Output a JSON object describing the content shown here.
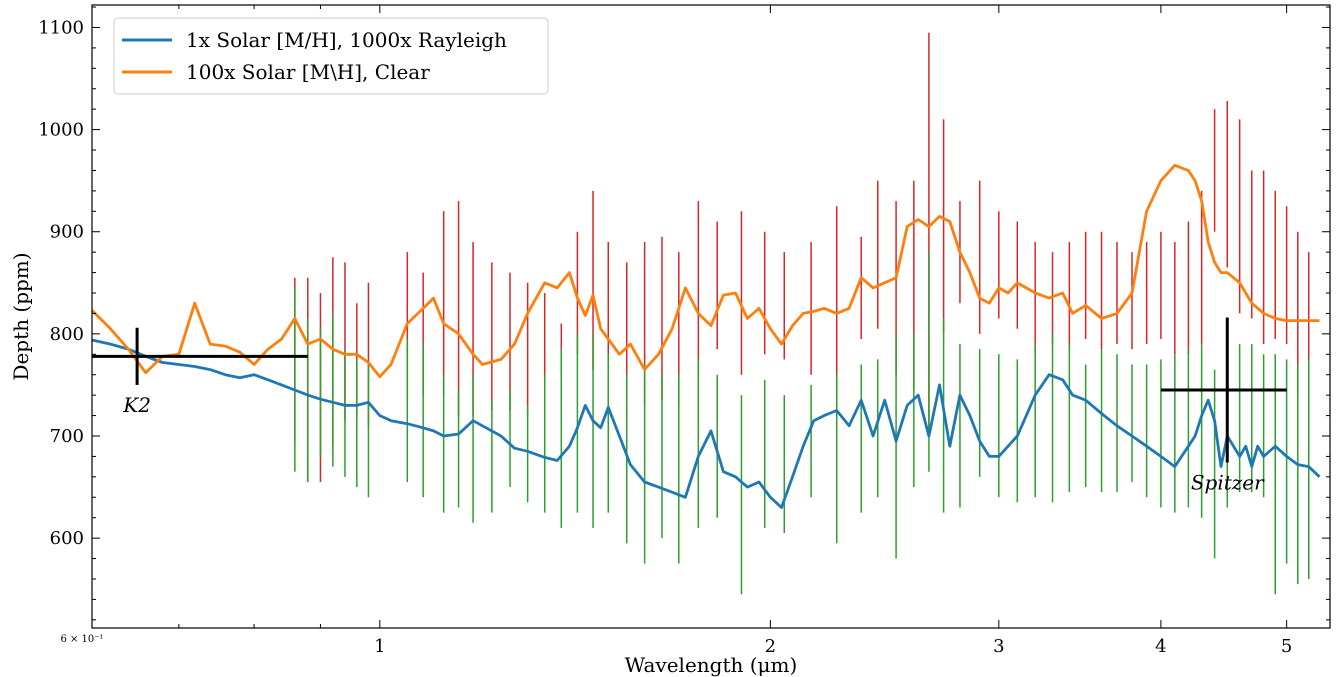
{
  "chart_data": {
    "type": "line",
    "xlabel": "Wavelength (μm)",
    "ylabel": "Depth (ppm)",
    "xscale": "log",
    "xlim": [
      0.6,
      5.4
    ],
    "ylim": [
      512,
      1122
    ],
    "grid": false,
    "legend_position": "top-left",
    "x_ticks": [
      {
        "value": 0.6,
        "label": "6 × 10⁻¹",
        "small": true
      },
      {
        "value": 1,
        "label": "1"
      },
      {
        "value": 2,
        "label": "2"
      },
      {
        "value": 3,
        "label": "3"
      },
      {
        "value": 4,
        "label": "4"
      },
      {
        "value": 5,
        "label": "5"
      }
    ],
    "y_ticks": [
      600,
      700,
      800,
      900,
      1000,
      1100
    ],
    "series": [
      {
        "name": "1x Solar [M/H], 1000x Rayleigh",
        "color": "#1f77b4",
        "x": [
          0.6,
          0.62,
          0.64,
          0.66,
          0.68,
          0.7,
          0.72,
          0.74,
          0.76,
          0.78,
          0.8,
          0.82,
          0.84,
          0.86,
          0.88,
          0.9,
          0.92,
          0.94,
          0.96,
          0.98,
          1.0,
          1.02,
          1.05,
          1.08,
          1.1,
          1.12,
          1.15,
          1.18,
          1.2,
          1.24,
          1.27,
          1.3,
          1.34,
          1.37,
          1.4,
          1.42,
          1.44,
          1.46,
          1.48,
          1.5,
          1.53,
          1.56,
          1.6,
          1.64,
          1.68,
          1.72,
          1.76,
          1.8,
          1.84,
          1.88,
          1.92,
          1.96,
          2.0,
          2.04,
          2.08,
          2.12,
          2.16,
          2.2,
          2.25,
          2.3,
          2.35,
          2.4,
          2.45,
          2.5,
          2.55,
          2.6,
          2.65,
          2.7,
          2.75,
          2.8,
          2.85,
          2.9,
          2.95,
          3.0,
          3.05,
          3.1,
          3.15,
          3.2,
          3.28,
          3.36,
          3.42,
          3.5,
          3.6,
          3.7,
          3.8,
          3.9,
          4.0,
          4.1,
          4.2,
          4.25,
          4.3,
          4.35,
          4.4,
          4.45,
          4.5,
          4.55,
          4.6,
          4.65,
          4.7,
          4.75,
          4.8,
          4.9,
          5.0,
          5.1,
          5.2,
          5.3
        ],
        "values": [
          794,
          790,
          785,
          778,
          772,
          770,
          768,
          765,
          760,
          757,
          760,
          755,
          750,
          745,
          740,
          736,
          733,
          730,
          730,
          733,
          720,
          715,
          712,
          708,
          705,
          700,
          702,
          715,
          710,
          700,
          688,
          685,
          679,
          676,
          690,
          708,
          730,
          715,
          708,
          728,
          700,
          672,
          655,
          650,
          645,
          640,
          680,
          705,
          665,
          660,
          650,
          655,
          640,
          630,
          660,
          690,
          715,
          720,
          725,
          710,
          735,
          700,
          735,
          695,
          730,
          740,
          700,
          750,
          690,
          740,
          720,
          695,
          680,
          680,
          690,
          700,
          720,
          740,
          760,
          755,
          740,
          735,
          722,
          710,
          700,
          690,
          680,
          670,
          690,
          700,
          720,
          735,
          715,
          670,
          700,
          690,
          680,
          690,
          670,
          690,
          680,
          690,
          680,
          672,
          670,
          660
        ]
      },
      {
        "name": "100x Solar [M\\H], Clear",
        "color": "#ff7f0e",
        "x": [
          0.6,
          0.62,
          0.64,
          0.66,
          0.68,
          0.7,
          0.72,
          0.74,
          0.76,
          0.78,
          0.8,
          0.82,
          0.84,
          0.86,
          0.88,
          0.9,
          0.92,
          0.94,
          0.96,
          0.98,
          1.0,
          1.02,
          1.05,
          1.08,
          1.1,
          1.12,
          1.15,
          1.18,
          1.2,
          1.24,
          1.27,
          1.3,
          1.34,
          1.37,
          1.4,
          1.42,
          1.44,
          1.46,
          1.48,
          1.5,
          1.53,
          1.56,
          1.6,
          1.64,
          1.68,
          1.72,
          1.76,
          1.8,
          1.84,
          1.88,
          1.92,
          1.96,
          2.0,
          2.04,
          2.08,
          2.12,
          2.16,
          2.2,
          2.25,
          2.3,
          2.35,
          2.4,
          2.45,
          2.5,
          2.55,
          2.6,
          2.65,
          2.7,
          2.75,
          2.8,
          2.85,
          2.9,
          2.95,
          3.0,
          3.05,
          3.1,
          3.15,
          3.2,
          3.28,
          3.36,
          3.42,
          3.5,
          3.6,
          3.7,
          3.8,
          3.9,
          4.0,
          4.1,
          4.2,
          4.25,
          4.3,
          4.35,
          4.4,
          4.45,
          4.5,
          4.55,
          4.6,
          4.65,
          4.7,
          4.75,
          4.8,
          4.9,
          5.0,
          5.1,
          5.2,
          5.3
        ],
        "values": [
          823,
          805,
          785,
          762,
          778,
          780,
          830,
          790,
          788,
          782,
          770,
          785,
          795,
          815,
          790,
          795,
          785,
          780,
          780,
          772,
          758,
          770,
          810,
          825,
          835,
          810,
          800,
          780,
          770,
          775,
          790,
          820,
          850,
          845,
          860,
          835,
          818,
          838,
          805,
          795,
          780,
          790,
          765,
          780,
          805,
          845,
          820,
          808,
          838,
          840,
          815,
          825,
          805,
          790,
          808,
          820,
          822,
          825,
          820,
          825,
          855,
          845,
          850,
          855,
          905,
          912,
          905,
          915,
          910,
          880,
          860,
          835,
          830,
          845,
          840,
          850,
          845,
          840,
          835,
          840,
          820,
          828,
          815,
          820,
          840,
          920,
          950,
          965,
          960,
          950,
          930,
          890,
          870,
          860,
          860,
          855,
          850,
          840,
          830,
          825,
          820,
          815,
          813,
          813,
          813,
          813
        ]
      }
    ],
    "error_bars": [
      {
        "color": "#d62728",
        "x": [
          0.86,
          0.88,
          0.9,
          0.92,
          0.94,
          0.96,
          0.98,
          1.05,
          1.08,
          1.12,
          1.15,
          1.18,
          1.22,
          1.26,
          1.3,
          1.34,
          1.38,
          1.42,
          1.46,
          1.5,
          1.55,
          1.6,
          1.65,
          1.7,
          1.76,
          1.82,
          1.9,
          1.98,
          2.05,
          2.15,
          2.25,
          2.35,
          2.42,
          2.5,
          2.58,
          2.65,
          2.72,
          2.8,
          2.9,
          3.0,
          3.1,
          3.2,
          3.3,
          3.4,
          3.5,
          3.6,
          3.7,
          3.8,
          3.9,
          4.0,
          4.1,
          4.2,
          4.3,
          4.4,
          4.5,
          4.6,
          4.7,
          4.8,
          4.9,
          5.0,
          5.1,
          5.2
        ],
        "low": [
          695,
          655,
          655,
          690,
          715,
          720,
          710,
          735,
          740,
          740,
          720,
          720,
          725,
          725,
          720,
          750,
          760,
          780,
          765,
          735,
          735,
          730,
          735,
          730,
          760,
          785,
          760,
          780,
          775,
          760,
          720,
          795,
          805,
          760,
          745,
          700,
          800,
          830,
          800,
          815,
          805,
          780,
          790,
          785,
          795,
          785,
          790,
          785,
          790,
          795,
          780,
          780,
          790,
          900,
          865,
          820,
          815,
          790,
          795,
          790,
          740,
          680
        ],
        "high": [
          855,
          855,
          840,
          875,
          870,
          830,
          850,
          880,
          860,
          920,
          930,
          890,
          870,
          860,
          850,
          840,
          810,
          900,
          940,
          890,
          870,
          890,
          895,
          880,
          930,
          910,
          920,
          900,
          880,
          890,
          925,
          895,
          950,
          930,
          950,
          1095,
          1010,
          930,
          950,
          920,
          910,
          890,
          880,
          890,
          900,
          900,
          890,
          880,
          890,
          900,
          890,
          910,
          940,
          1020,
          1028,
          1010,
          960,
          960,
          940,
          925,
          900,
          880
        ]
      },
      {
        "color": "#2ca02c",
        "x": [
          0.86,
          0.88,
          0.9,
          0.92,
          0.94,
          0.96,
          0.98,
          1.05,
          1.08,
          1.12,
          1.15,
          1.18,
          1.22,
          1.26,
          1.3,
          1.34,
          1.38,
          1.42,
          1.46,
          1.5,
          1.55,
          1.6,
          1.65,
          1.7,
          1.76,
          1.82,
          1.9,
          1.98,
          2.05,
          2.15,
          2.25,
          2.35,
          2.42,
          2.5,
          2.58,
          2.65,
          2.72,
          2.8,
          2.9,
          3.0,
          3.1,
          3.2,
          3.3,
          3.4,
          3.5,
          3.6,
          3.7,
          3.8,
          3.9,
          4.0,
          4.1,
          4.2,
          4.3,
          4.4,
          4.5,
          4.6,
          4.7,
          4.8,
          4.9,
          5.0,
          5.1,
          5.2
        ],
        "low": [
          665,
          655,
          680,
          670,
          660,
          650,
          640,
          655,
          640,
          625,
          630,
          615,
          625,
          650,
          635,
          625,
          610,
          625,
          610,
          625,
          595,
          575,
          600,
          575,
          610,
          620,
          545,
          610,
          605,
          640,
          595,
          625,
          640,
          580,
          650,
          665,
          625,
          630,
          660,
          640,
          635,
          640,
          635,
          645,
          650,
          645,
          645,
          655,
          640,
          630,
          625,
          630,
          620,
          580,
          630,
          645,
          645,
          640,
          545,
          575,
          555,
          560
        ],
        "high": [
          845,
          815,
          805,
          820,
          785,
          775,
          770,
          795,
          790,
          760,
          745,
          760,
          735,
          745,
          730,
          760,
          785,
          800,
          800,
          780,
          760,
          770,
          760,
          760,
          775,
          760,
          740,
          755,
          740,
          750,
          760,
          770,
          775,
          800,
          800,
          880,
          815,
          790,
          785,
          780,
          775,
          790,
          800,
          790,
          770,
          785,
          780,
          770,
          770,
          775,
          780,
          785,
          790,
          765,
          790,
          790,
          790,
          780,
          780,
          775,
          770,
          775
        ]
      }
    ],
    "photometry": [
      {
        "label": "K2",
        "x": 0.65,
        "x_low": 0.6,
        "x_high": 0.88,
        "y": 778,
        "y_low": 750,
        "y_high": 806
      },
      {
        "label": "Spitzer",
        "x": 4.5,
        "x_low": 4.0,
        "x_high": 5.0,
        "y": 745,
        "y_low": 674,
        "y_high": 816
      }
    ]
  }
}
